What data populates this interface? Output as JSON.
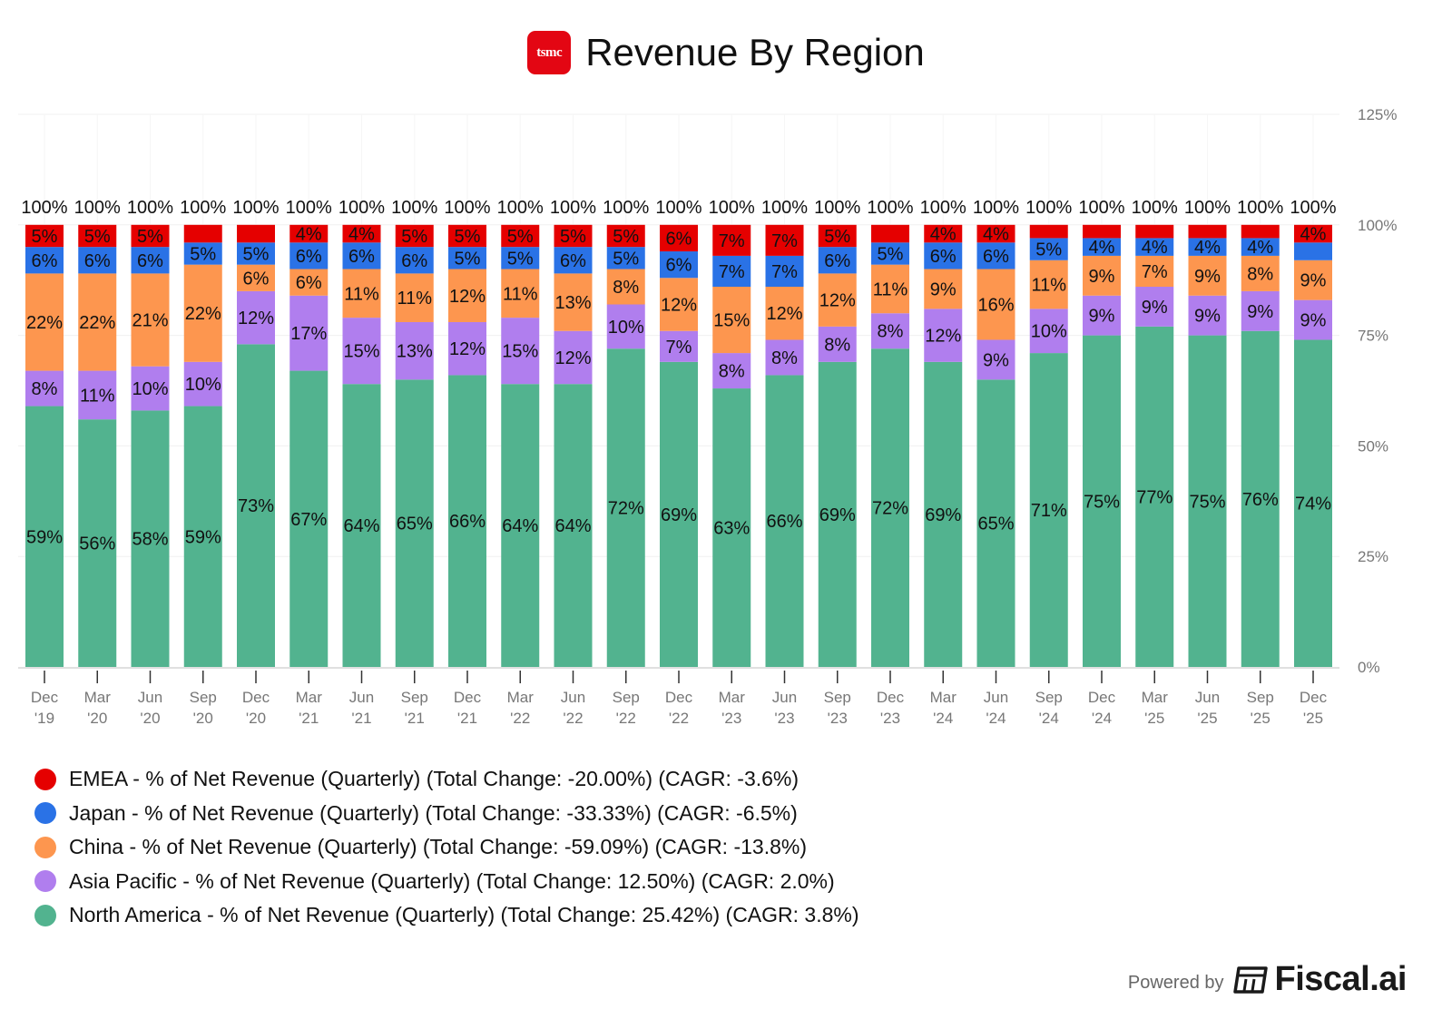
{
  "header": {
    "logo_text": "tsmc",
    "title": "Revenue By Region"
  },
  "footer": {
    "powered_by": "Powered by",
    "brand": "Fiscal.ai"
  },
  "colors": {
    "EMEA": "#e50000",
    "Japan": "#2a72e6",
    "China": "#fd964f",
    "Asia Pacific": "#b07eee",
    "North America": "#52b38f"
  },
  "chart_data": {
    "type": "bar",
    "stacked": true,
    "title": "Revenue By Region",
    "xlabel": "",
    "ylabel": "",
    "ylim": [
      0,
      125
    ],
    "yticks": [
      "0%",
      "25%",
      "50%",
      "75%",
      "100%",
      "125%"
    ],
    "ytick_values": [
      0,
      25,
      50,
      75,
      100,
      125
    ],
    "y_axis_position": "right",
    "grid": true,
    "legend_position": "bottom-left",
    "categories": [
      [
        "Dec",
        "'19"
      ],
      [
        "Mar",
        "'20"
      ],
      [
        "Jun",
        "'20"
      ],
      [
        "Sep",
        "'20"
      ],
      [
        "Dec",
        "'20"
      ],
      [
        "Mar",
        "'21"
      ],
      [
        "Jun",
        "'21"
      ],
      [
        "Sep",
        "'21"
      ],
      [
        "Dec",
        "'21"
      ],
      [
        "Mar",
        "'22"
      ],
      [
        "Jun",
        "'22"
      ],
      [
        "Sep",
        "'22"
      ],
      [
        "Dec",
        "'22"
      ],
      [
        "Mar",
        "'23"
      ],
      [
        "Jun",
        "'23"
      ],
      [
        "Sep",
        "'23"
      ],
      [
        "Dec",
        "'23"
      ],
      [
        "Mar",
        "'24"
      ],
      [
        "Jun",
        "'24"
      ],
      [
        "Sep",
        "'24"
      ],
      [
        "Dec",
        "'24"
      ],
      [
        "Mar",
        "'25"
      ],
      [
        "Jun",
        "'25"
      ],
      [
        "Sep",
        "'25"
      ],
      [
        "Dec",
        "'25"
      ]
    ],
    "totals": [
      100,
      100,
      100,
      100,
      100,
      100,
      100,
      100,
      100,
      100,
      100,
      100,
      100,
      100,
      100,
      100,
      100,
      100,
      100,
      100,
      100,
      100,
      100,
      100,
      100
    ],
    "total_label": "100%",
    "series": [
      {
        "name": "North America",
        "color": "#52b38f",
        "values": [
          59,
          56,
          58,
          59,
          73,
          67,
          64,
          65,
          66,
          64,
          64,
          72,
          69,
          63,
          66,
          69,
          72,
          69,
          65,
          71,
          75,
          77,
          75,
          76,
          74
        ],
        "show_label": [
          1,
          1,
          1,
          1,
          1,
          1,
          1,
          1,
          1,
          1,
          1,
          1,
          1,
          1,
          1,
          1,
          1,
          1,
          1,
          1,
          1,
          1,
          1,
          1,
          1
        ]
      },
      {
        "name": "Asia Pacific",
        "color": "#b07eee",
        "values": [
          8,
          11,
          10,
          10,
          12,
          17,
          15,
          13,
          12,
          15,
          12,
          10,
          7,
          8,
          8,
          8,
          8,
          12,
          9,
          10,
          9,
          9,
          9,
          9,
          9
        ],
        "show_label": [
          1,
          1,
          1,
          1,
          1,
          1,
          1,
          1,
          1,
          1,
          1,
          1,
          1,
          1,
          1,
          1,
          1,
          1,
          1,
          1,
          1,
          1,
          1,
          1,
          1
        ]
      },
      {
        "name": "China",
        "color": "#fd964f",
        "values": [
          22,
          22,
          21,
          22,
          6,
          6,
          11,
          11,
          12,
          11,
          13,
          8,
          12,
          15,
          12,
          12,
          11,
          9,
          16,
          11,
          9,
          7,
          9,
          8,
          9
        ],
        "show_label": [
          1,
          1,
          1,
          1,
          1,
          1,
          1,
          1,
          1,
          1,
          1,
          1,
          1,
          1,
          1,
          1,
          1,
          1,
          1,
          1,
          1,
          1,
          1,
          1,
          1
        ]
      },
      {
        "name": "Japan",
        "color": "#2a72e6",
        "values": [
          6,
          6,
          6,
          5,
          5,
          6,
          6,
          6,
          5,
          5,
          6,
          5,
          6,
          7,
          7,
          6,
          5,
          6,
          6,
          5,
          4,
          4,
          4,
          4,
          4
        ],
        "show_label": [
          1,
          1,
          1,
          1,
          1,
          1,
          1,
          1,
          1,
          1,
          1,
          1,
          1,
          1,
          1,
          1,
          1,
          1,
          1,
          1,
          1,
          1,
          1,
          1,
          0
        ]
      },
      {
        "name": "EMEA",
        "color": "#e50000",
        "values": [
          5,
          5,
          5,
          4,
          4,
          4,
          4,
          5,
          5,
          5,
          5,
          5,
          6,
          7,
          7,
          5,
          4,
          4,
          4,
          3,
          3,
          3,
          3,
          3,
          4
        ],
        "show_label": [
          1,
          1,
          1,
          0,
          0,
          1,
          1,
          1,
          1,
          1,
          1,
          1,
          1,
          1,
          1,
          1,
          0,
          1,
          1,
          0,
          0,
          0,
          0,
          0,
          1
        ]
      }
    ]
  },
  "legend": [
    {
      "name": "EMEA",
      "color": "#e50000",
      "label": "EMEA - % of Net Revenue (Quarterly) (Total Change: -20.00%) (CAGR: -3.6%)"
    },
    {
      "name": "Japan",
      "color": "#2a72e6",
      "label": "Japan - % of Net Revenue (Quarterly) (Total Change: -33.33%) (CAGR: -6.5%)"
    },
    {
      "name": "China",
      "color": "#fd964f",
      "label": "China - % of Net Revenue (Quarterly) (Total Change: -59.09%) (CAGR: -13.8%)"
    },
    {
      "name": "Asia Pacific",
      "color": "#b07eee",
      "label": "Asia Pacific - % of Net Revenue (Quarterly) (Total Change: 12.50%) (CAGR: 2.0%)"
    },
    {
      "name": "North America",
      "color": "#52b38f",
      "label": "North America - % of Net Revenue (Quarterly) (Total Change: 25.42%) (CAGR: 3.8%)"
    }
  ]
}
